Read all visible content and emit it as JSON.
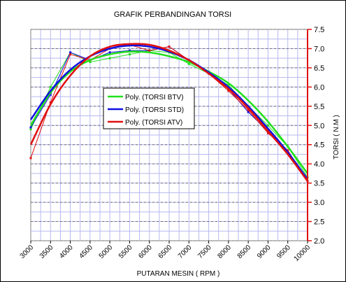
{
  "chart_data": {
    "type": "line",
    "title": "GRAFIK PERBANDINGAN TORSI",
    "xlabel": "PUTARAN MESIN ( RPM )",
    "ylabel": "TORSI ( N.M )",
    "x_ticks": [
      3000,
      3500,
      4000,
      4500,
      5000,
      5500,
      6000,
      6500,
      7000,
      7500,
      8000,
      8500,
      9000,
      9500,
      10000
    ],
    "xlim": [
      3000,
      10000
    ],
    "ylim": [
      2.0,
      7.5
    ],
    "y_ticks": [
      "2.0",
      "2.5",
      "3.0",
      "3.5",
      "4.0",
      "4.5",
      "5.0",
      "5.5",
      "6.0",
      "6.5",
      "7.0",
      "7.5"
    ],
    "grid": true,
    "legend_position": "center-left",
    "series": [
      {
        "name": "Poly. (TORSI BTV)",
        "role": "trend",
        "color": "#22e01c",
        "x": [
          3000,
          3500,
          4000,
          4500,
          5000,
          5500,
          6000,
          6500,
          7000,
          7500,
          8000,
          8500,
          9000,
          9500,
          10000
        ],
        "y": [
          5.0,
          5.85,
          6.4,
          6.7,
          6.85,
          6.92,
          6.9,
          6.8,
          6.65,
          6.4,
          6.1,
          5.65,
          5.1,
          4.45,
          3.75
        ]
      },
      {
        "name": "Poly. (TORSI STD)",
        "role": "trend",
        "color": "#1010e0",
        "x": [
          3000,
          3500,
          4000,
          4500,
          5000,
          5500,
          6000,
          6500,
          7000,
          7500,
          8000,
          8500,
          9000,
          9500,
          10000
        ],
        "y": [
          5.15,
          5.9,
          6.45,
          6.8,
          7.0,
          7.08,
          7.05,
          6.92,
          6.7,
          6.38,
          6.0,
          5.5,
          4.92,
          4.3,
          3.6
        ]
      },
      {
        "name": "Poly. (TORSI ATV)",
        "role": "trend",
        "color": "#e01010",
        "x": [
          3000,
          3500,
          4000,
          4500,
          5000,
          5500,
          6000,
          6500,
          7000,
          7500,
          8000,
          8500,
          9000,
          9500,
          10000
        ],
        "y": [
          4.5,
          5.55,
          6.3,
          6.8,
          7.05,
          7.12,
          7.1,
          6.95,
          6.7,
          6.35,
          5.95,
          5.45,
          4.85,
          4.25,
          3.55
        ]
      },
      {
        "name": "TORSI BTV",
        "role": "raw",
        "color": "#22e01c",
        "x": [
          3000,
          3500,
          4000,
          4500,
          5000,
          5500,
          6000,
          6500,
          7000,
          7500,
          8000,
          8500,
          9000,
          9500,
          10000
        ],
        "y": [
          4.9,
          6.0,
          6.9,
          6.65,
          6.75,
          6.85,
          6.95,
          6.9,
          6.6,
          6.35,
          6.05,
          5.5,
          5.0,
          4.45,
          3.65
        ]
      },
      {
        "name": "TORSI STD",
        "role": "raw",
        "color": "#1010e0",
        "x": [
          3000,
          3500,
          4000,
          4500,
          5000,
          5500,
          6000,
          6500,
          7000,
          7500,
          8000,
          8500,
          9000,
          9500,
          10000
        ],
        "y": [
          4.95,
          5.8,
          6.9,
          6.7,
          6.9,
          6.95,
          6.95,
          7.05,
          6.7,
          6.4,
          5.95,
          5.35,
          4.85,
          4.35,
          3.55
        ]
      },
      {
        "name": "TORSI ATV",
        "role": "raw",
        "color": "#e01010",
        "x": [
          3000,
          3500,
          4000,
          4500,
          5000,
          5500,
          6000,
          6500,
          7000,
          7500,
          8000,
          8500,
          9000,
          9500,
          10000
        ],
        "y": [
          4.15,
          5.6,
          6.85,
          6.7,
          7.0,
          7.1,
          6.95,
          7.05,
          6.7,
          6.35,
          5.9,
          5.4,
          4.8,
          4.35,
          3.55
        ]
      }
    ]
  }
}
